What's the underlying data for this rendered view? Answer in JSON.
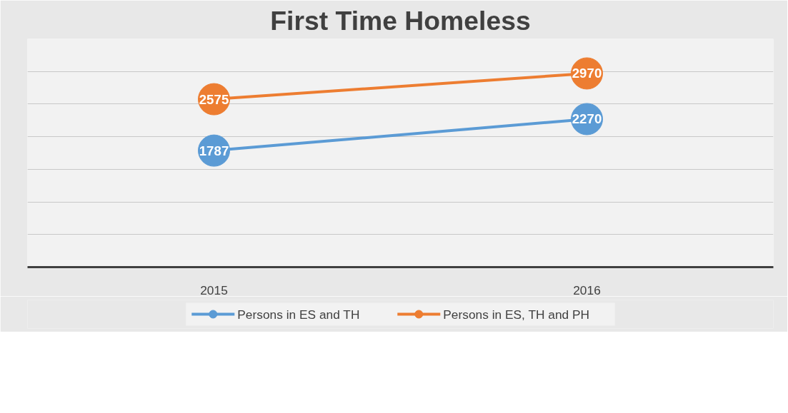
{
  "chart_data": {
    "type": "line",
    "title": "First Time Homeless",
    "categories": [
      "2015",
      "2016"
    ],
    "series": [
      {
        "name": "Persons in ES and TH",
        "color": "#5b9bd5",
        "values": [
          1787,
          2270
        ]
      },
      {
        "name": "Persons in ES, TH and PH",
        "color": "#ed7d31",
        "values": [
          2575,
          2970
        ]
      }
    ],
    "ylim": [
      0,
      3500
    ],
    "yticks": [
      {
        "value": 0,
        "label": null
      },
      {
        "value": 500,
        "label": null
      },
      {
        "value": 1000,
        "label": null
      },
      {
        "value": 1500,
        "label": null
      },
      {
        "value": 2000,
        "label": null
      },
      {
        "value": 2500,
        "label": null
      },
      {
        "value": 3000,
        "label": null
      },
      {
        "value": 3500,
        "label": null
      }
    ],
    "tick_labels": "x",
    "grid": "y",
    "legend": "bottom",
    "marker": "circle",
    "line_style": "solid",
    "data_labels": true
  }
}
